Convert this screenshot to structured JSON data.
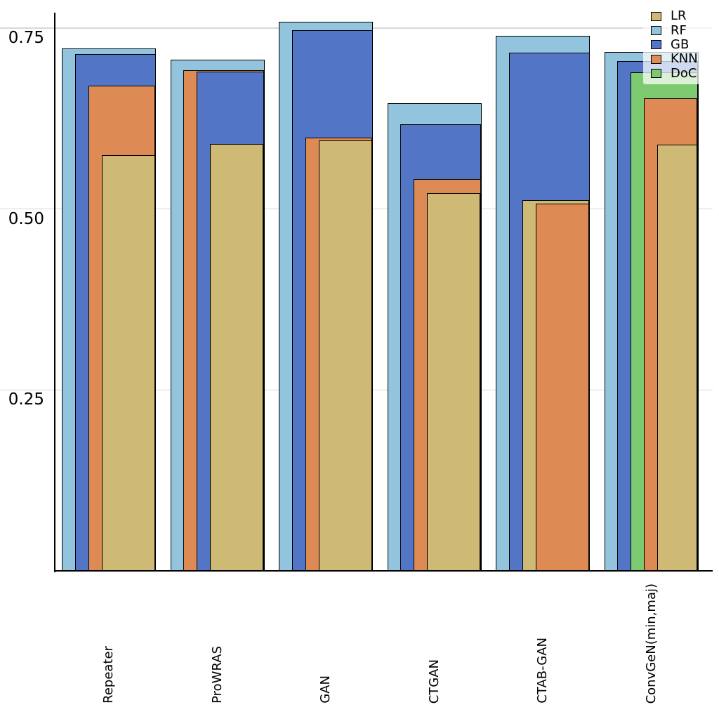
{
  "chart_data": {
    "type": "bar",
    "variant": "overlaid-nested-bars-sorted-descending-per-category",
    "title": "",
    "xlabel": "",
    "ylabel": "",
    "categories": [
      "Repeater",
      "ProWRAS",
      "GAN",
      "CTGAN",
      "CTAB-GAN",
      "ConvGeN(min,maj)"
    ],
    "series": [
      {
        "name": "LR",
        "color": "#cfba75",
        "values": [
          0.574,
          0.59,
          0.595,
          0.522,
          0.512,
          0.589
        ]
      },
      {
        "name": "RF",
        "color": "#93c4de",
        "values": [
          0.722,
          0.706,
          0.759,
          0.646,
          0.739,
          0.717
        ]
      },
      {
        "name": "GB",
        "color": "#5276c5",
        "values": [
          0.714,
          0.69,
          0.747,
          0.617,
          0.716,
          0.704
        ]
      },
      {
        "name": "KNN",
        "color": "#de8a54",
        "values": [
          0.67,
          0.692,
          0.599,
          0.541,
          0.507,
          0.653
        ]
      },
      {
        "name": "DoC",
        "color": "#7cc96f",
        "values": [
          null,
          null,
          null,
          null,
          null,
          0.689
        ]
      }
    ],
    "bar_edge_color": "#000000",
    "ylim": [
      0,
      0.77
    ],
    "yticks": [
      {
        "value": 0.25,
        "label": "0.25"
      },
      {
        "value": 0.5,
        "label": "0.50"
      },
      {
        "value": 0.75,
        "label": "0.75"
      }
    ],
    "grid": true,
    "gridline_color": "#d8d8d8",
    "legend": {
      "position": "upper right",
      "items": [
        "LR",
        "RF",
        "GB",
        "KNN",
        "DoC"
      ]
    }
  }
}
